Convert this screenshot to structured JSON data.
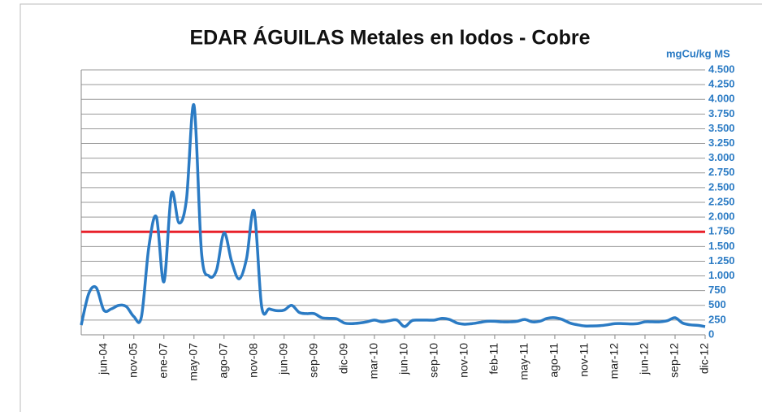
{
  "chart_data": {
    "type": "line",
    "title": "EDAR ÁGUILAS Metales en lodos - Cobre",
    "axis_label": "mgCu/kg MS",
    "axis_side": "right",
    "categories": [
      null,
      null,
      null,
      "jun-04",
      null,
      null,
      null,
      "nov-05",
      null,
      null,
      null,
      "ene-07",
      null,
      null,
      null,
      "may-07",
      null,
      null,
      null,
      "ago-07",
      null,
      null,
      null,
      "nov-08",
      null,
      null,
      null,
      "jun-09",
      null,
      null,
      null,
      "sep-09",
      null,
      null,
      null,
      "dic-09",
      null,
      null,
      null,
      "mar-10",
      null,
      null,
      null,
      "jun-10",
      null,
      null,
      null,
      "sep-10",
      null,
      null,
      null,
      "nov-10",
      null,
      null,
      null,
      "feb-11",
      null,
      null,
      null,
      "may-11",
      null,
      null,
      null,
      "ago-11",
      null,
      null,
      null,
      "nov-11",
      null,
      null,
      null,
      "mar-12",
      null,
      null,
      null,
      "jun-12",
      null,
      null,
      null,
      "sep-12",
      null,
      null,
      null,
      "dic-12"
    ],
    "series": [
      {
        "color": "#2b7bc4",
        "values": [
          165,
          700,
          800,
          420,
          440,
          500,
          480,
          310,
          300,
          1500,
          2000,
          900,
          2400,
          1900,
          2300,
          3900,
          1400,
          1000,
          1100,
          1730,
          1250,
          950,
          1300,
          2100,
          480,
          440,
          410,
          420,
          500,
          380,
          360,
          360,
          290,
          280,
          270,
          200,
          190,
          200,
          220,
          250,
          220,
          240,
          250,
          140,
          240,
          250,
          250,
          250,
          280,
          260,
          200,
          180,
          190,
          210,
          230,
          230,
          220,
          220,
          230,
          260,
          220,
          230,
          280,
          290,
          260,
          200,
          170,
          150,
          150,
          155,
          170,
          190,
          190,
          185,
          190,
          220,
          220,
          220,
          240,
          290,
          200,
          170,
          160,
          140
        ]
      }
    ],
    "threshold": {
      "value": 1750,
      "color": "#e8202a"
    },
    "ylim": [
      0,
      4500
    ],
    "yticks": [
      0,
      250,
      500,
      750,
      {
        "value": 1000,
        "label": "1.000"
      },
      {
        "value": 1250,
        "label": "1.250"
      },
      {
        "value": 1500,
        "label": "1.500"
      },
      {
        "value": 1750,
        "label": "1.750"
      },
      {
        "value": 2000,
        "label": "2.000"
      },
      {
        "value": 2250,
        "label": "2.250"
      },
      {
        "value": 2500,
        "label": "2.500"
      },
      {
        "value": 2750,
        "label": "2.750"
      },
      {
        "value": 3000,
        "label": "3.000"
      },
      {
        "value": 3250,
        "label": "3.250"
      },
      {
        "value": 3500,
        "label": "3.500"
      },
      {
        "value": 3750,
        "label": "3.750"
      },
      {
        "value": 4000,
        "label": "4.000"
      },
      {
        "value": 4250,
        "label": "4.250"
      },
      {
        "value": 4500,
        "label": "4.500"
      }
    ],
    "grid": true
  }
}
